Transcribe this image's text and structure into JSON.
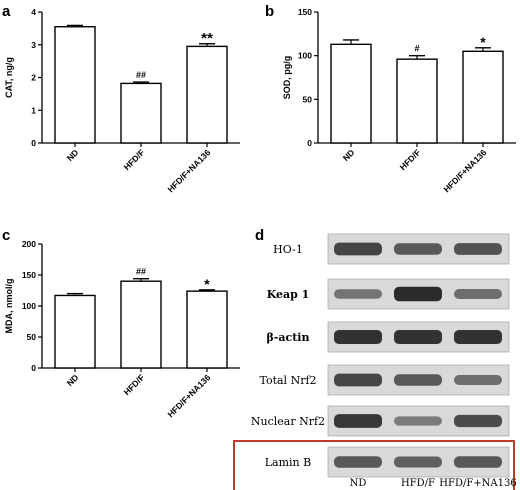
{
  "panels": {
    "a": {
      "letter": "a"
    },
    "b": {
      "letter": "b"
    },
    "c": {
      "letter": "c"
    },
    "d": {
      "letter": "d"
    }
  },
  "chart_data": [
    {
      "id": "a",
      "type": "bar",
      "categories": [
        "ND",
        "HFD/F",
        "HFD/F+NA136"
      ],
      "values": [
        3.55,
        1.82,
        2.95
      ],
      "errors": [
        0.04,
        0.04,
        0.08
      ],
      "significance": [
        "",
        "##",
        "**"
      ],
      "title": "",
      "xlabel": "",
      "ylabel": "CAT, ng/g",
      "ylim": [
        0,
        4
      ],
      "yticks": [
        0,
        1,
        2,
        3,
        4
      ]
    },
    {
      "id": "b",
      "type": "bar",
      "categories": [
        "ND",
        "HFD/F",
        "HFD/F+NA136"
      ],
      "values": [
        113,
        96,
        105
      ],
      "errors": [
        5,
        4,
        4
      ],
      "significance": [
        "",
        "#",
        "*"
      ],
      "title": "",
      "xlabel": "",
      "ylabel": "SOD, pg/g",
      "ylim": [
        0,
        150
      ],
      "yticks": [
        0,
        50,
        100,
        150
      ]
    },
    {
      "id": "c",
      "type": "bar",
      "categories": [
        "ND",
        "HFD/F",
        "HFD/F+NA136"
      ],
      "values": [
        117,
        140,
        124
      ],
      "errors": [
        3,
        4,
        2
      ],
      "significance": [
        "",
        "##",
        "*"
      ],
      "title": "",
      "xlabel": "",
      "ylabel": "MDA, nmol/g",
      "ylim": [
        0,
        200
      ],
      "yticks": [
        0,
        50,
        100,
        150,
        200
      ]
    }
  ],
  "blot": {
    "rows": [
      {
        "label": "HO-1",
        "intensity": [
          0.75,
          0.6,
          0.65
        ],
        "bold": false
      },
      {
        "label": "Keap 1",
        "intensity": [
          0.4,
          0.95,
          0.45
        ],
        "bold": true
      },
      {
        "label": "β-actin",
        "intensity": [
          0.9,
          0.9,
          0.9
        ],
        "bold": true
      },
      {
        "label": "Total Nrf2",
        "intensity": [
          0.75,
          0.6,
          0.45
        ],
        "bold": false
      },
      {
        "label": "Nuclear Nrf2",
        "intensity": [
          0.85,
          0.35,
          0.7
        ],
        "bold": false
      },
      {
        "label": "Lamin B",
        "intensity": [
          0.6,
          0.55,
          0.6
        ],
        "bold": false
      }
    ],
    "lanes": [
      "ND",
      "HFD/F",
      "HFD/F+NA136"
    ],
    "highlight_row": "Lamin B",
    "highlight_color": "#c0392b",
    "band_color": "#1a1a1a",
    "strip_color": "#d9d9d9"
  },
  "colors": {
    "bar_fill": "#ffffff",
    "bar_stroke": "#000000",
    "axis": "#000000"
  }
}
